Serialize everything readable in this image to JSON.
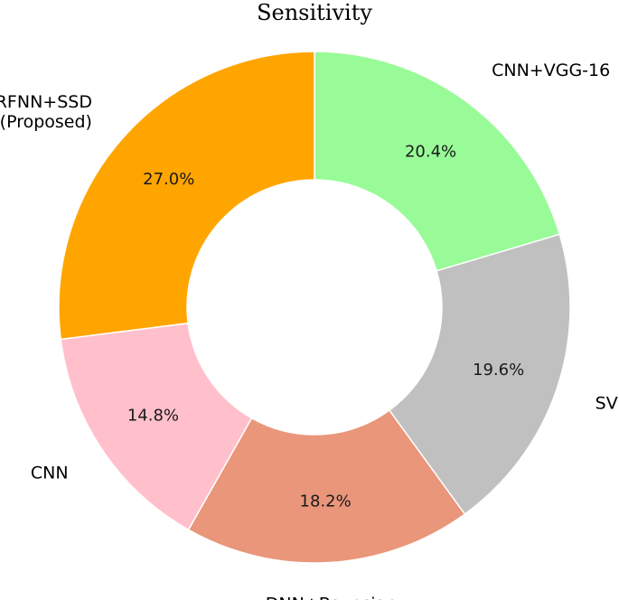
{
  "chart_data": {
    "type": "pie",
    "title": "Sensitivity",
    "donut": true,
    "start_angle_deg": 90,
    "direction": "clockwise",
    "legend": "none",
    "slices": [
      {
        "label": "CNN+VGG-16",
        "value": 20.4,
        "pct_label": "20.4%",
        "color": "#98fb98"
      },
      {
        "label": "SVM",
        "value": 19.6,
        "pct_label": "19.6%",
        "color": "#c0c0c0"
      },
      {
        "label": "DNN+Bayesian",
        "value": 18.2,
        "pct_label": "18.2%",
        "color": "#e9967a"
      },
      {
        "label": "CNN",
        "value": 14.8,
        "pct_label": "14.8%",
        "color": "#ffc0cb"
      },
      {
        "label": "RFNN+SSD\n(Proposed)",
        "value": 27.0,
        "pct_label": "27.0%",
        "color": "#ffa500"
      }
    ]
  }
}
